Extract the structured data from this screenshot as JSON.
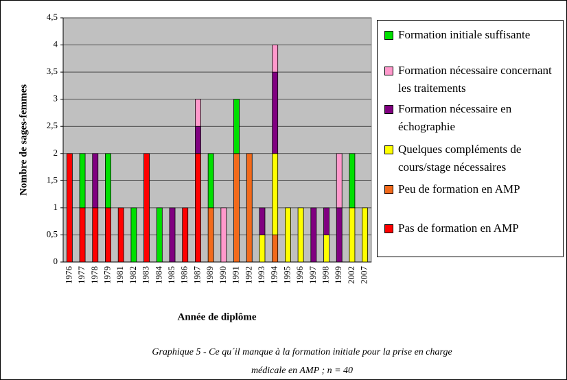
{
  "chart_data": {
    "type": "stacked_bar",
    "ylabel": "Nombre de sages-femmes",
    "xlabel": "Année de diplôme",
    "caption": [
      "Graphique 5 - Ce qu´il manque à la formation initiale pour la prise en charge",
      "médicale en AMP ; n = 40"
    ],
    "categories": [
      "1976",
      "1977",
      "1978",
      "1979",
      "1981",
      "1982",
      "1983",
      "1984",
      "1985",
      "1986",
      "1987",
      "1989",
      "1990",
      "1991",
      "1992",
      "1993",
      "1994",
      "1995",
      "1996",
      "1997",
      "1998",
      "1999",
      "2002",
      "2007"
    ],
    "series": [
      {
        "name": "Pas de formation en AMP",
        "color": "#ff0000",
        "values": [
          2,
          1,
          1,
          1,
          1,
          0,
          2,
          0,
          0,
          1,
          2,
          0,
          0,
          0,
          0,
          0,
          0,
          0,
          0,
          0,
          0,
          0,
          0,
          0
        ]
      },
      {
        "name": "Peu de formation en AMP",
        "color": "#f26a1b",
        "values": [
          0,
          0,
          0,
          0,
          0,
          0,
          0,
          0,
          0,
          0,
          0,
          1,
          0,
          2,
          2,
          0,
          0.5,
          0,
          0,
          0,
          0,
          0,
          0,
          0
        ]
      },
      {
        "name": "Quelques compléments de cours/stage nécessaires",
        "color": "#ffff00",
        "values": [
          0,
          0,
          0,
          0,
          0,
          0,
          0,
          0,
          0,
          0,
          0,
          0,
          0,
          0,
          0,
          0.5,
          1.5,
          1,
          1,
          0,
          0.5,
          0,
          1,
          1
        ]
      },
      {
        "name": "Formation nécessaire en échographie",
        "color": "#800080",
        "values": [
          0,
          0,
          1,
          0,
          0,
          0,
          0,
          0,
          1,
          0,
          0.5,
          0,
          0,
          0,
          0,
          0.5,
          1.5,
          0,
          0,
          1,
          0.5,
          1,
          0,
          0
        ]
      },
      {
        "name": "Formation nécessaire concernant les traitements",
        "color": "#ff99cc",
        "values": [
          0,
          0,
          0,
          0,
          0,
          0,
          0,
          0,
          0,
          0,
          0.5,
          0,
          1,
          0,
          0,
          0,
          0.5,
          0,
          0,
          0,
          0,
          1,
          0,
          0
        ]
      },
      {
        "name": "Formation initiale suffisante",
        "color": "#00e000",
        "values": [
          0,
          1,
          0,
          1,
          0,
          1,
          0,
          1,
          0,
          0,
          0,
          1,
          0,
          1,
          0,
          0,
          0,
          0,
          0,
          0,
          0,
          0,
          1,
          0
        ]
      }
    ],
    "ylim": [
      0,
      4.5
    ],
    "yticks": [
      0,
      {
        "value": 0.5,
        "label": "0,5"
      },
      1,
      {
        "value": 1.5,
        "label": "1,5"
      },
      2,
      {
        "value": 2.5,
        "label": "2,5"
      },
      3,
      {
        "value": 3.5,
        "label": "3,5"
      },
      4,
      {
        "value": 4.5,
        "label": "4,5"
      }
    ],
    "grid": true,
    "legend": "right"
  }
}
